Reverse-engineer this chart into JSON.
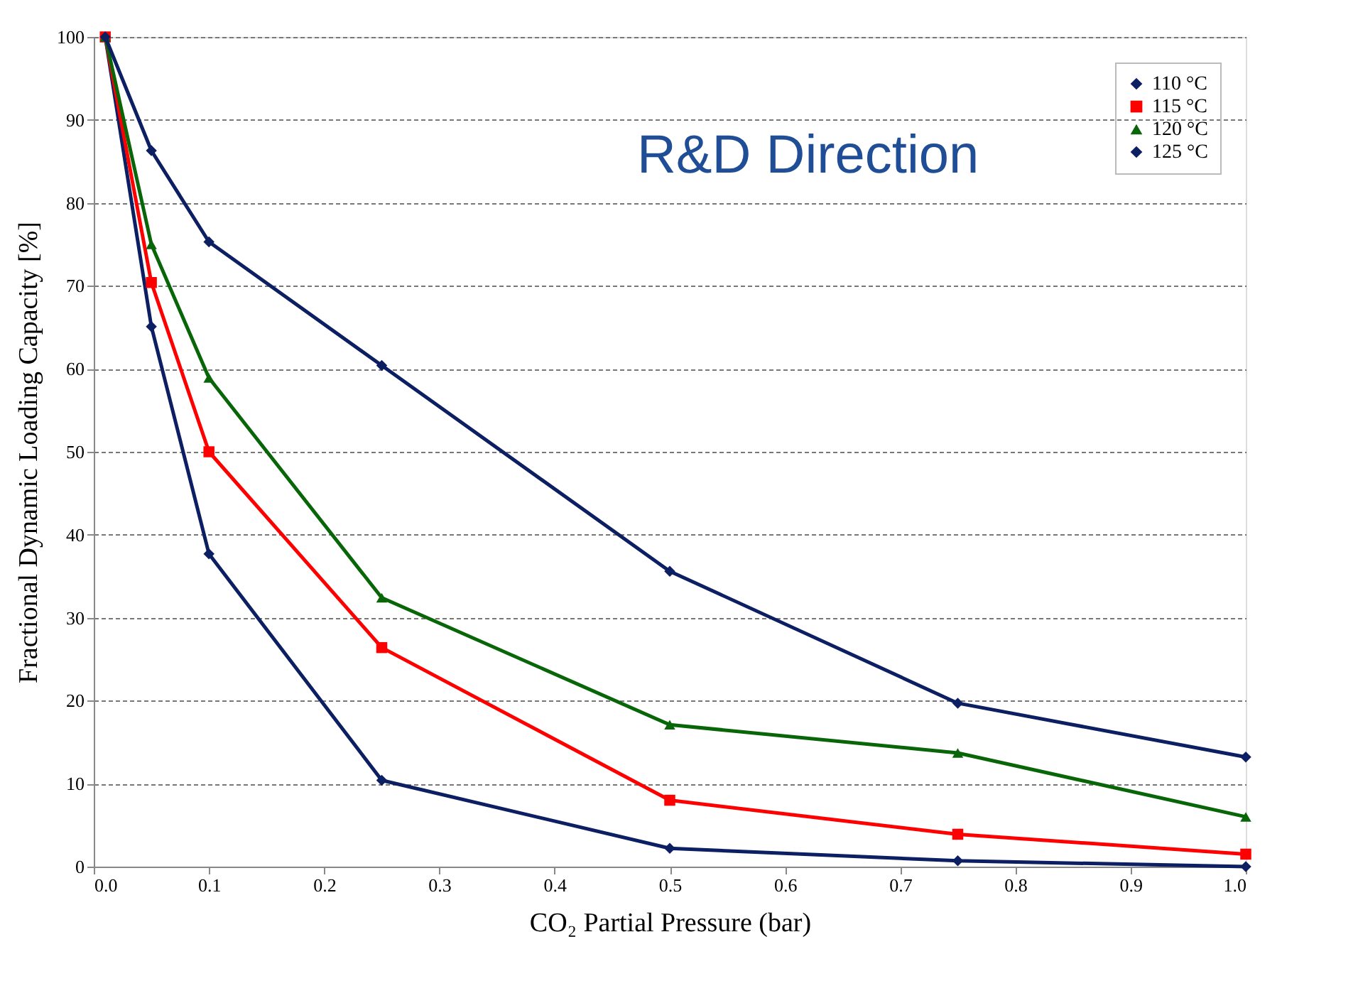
{
  "chart_data": {
    "type": "line",
    "xlabel": "CO₂ Partial Pressure  (bar)",
    "ylabel": "Fractional Dynamic Loading Capacity [%]",
    "x": [
      0.01,
      0.05,
      0.1,
      0.25,
      0.5,
      0.75,
      1.0
    ],
    "series": [
      {
        "name": "110 °C",
        "color": "#0d1f63",
        "marker": "diamond",
        "values": [
          100,
          65.1,
          37.7,
          10.4,
          2.2,
          0.7,
          0
        ]
      },
      {
        "name": "115 °C",
        "color": "#ff0000",
        "marker": "square",
        "values": [
          100,
          70.4,
          50,
          26.4,
          8,
          3.9,
          1.5
        ]
      },
      {
        "name": "120 °C",
        "color": "#086608",
        "marker": "triangle",
        "values": [
          100,
          75,
          58.9,
          32.4,
          17.1,
          13.7,
          6
        ]
      },
      {
        "name": "125 °C",
        "color": "#0d1f63",
        "marker": "diamond",
        "values": [
          100,
          86.3,
          75.3,
          60.4,
          35.6,
          19.7,
          13.2
        ]
      }
    ],
    "xlim": [
      0,
      1
    ],
    "ylim": [
      0,
      100
    ],
    "xticks": [
      {
        "value": 0,
        "label": "0.0"
      },
      0.1,
      0.2,
      0.3,
      0.4,
      0.5,
      0.6,
      0.7,
      0.8,
      0.9,
      {
        "value": 1,
        "label": "1.0"
      }
    ],
    "yticks": [
      0,
      10,
      20,
      30,
      40,
      50,
      60,
      70,
      80,
      90,
      100
    ],
    "grid": "y",
    "legend": "top right",
    "annotations": [
      "R&D Direction"
    ]
  }
}
